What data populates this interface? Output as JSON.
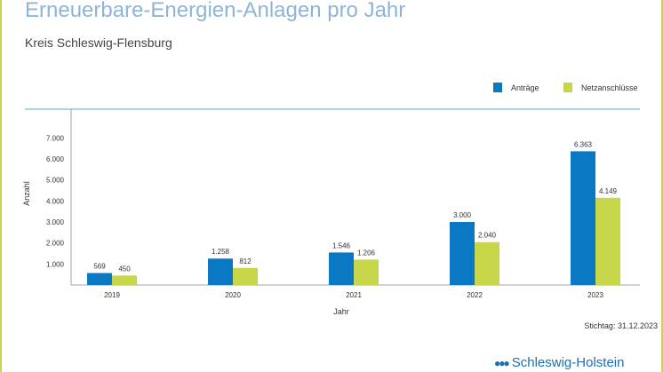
{
  "chart_data": {
    "type": "bar",
    "title": "Erneuerbare-Energien-Anlagen pro Jahr",
    "subtitle": "Kreis Schleswig-Flensburg",
    "xlabel": "Jahr",
    "ylabel": "Anzahl",
    "categories": [
      "2019",
      "2020",
      "2021",
      "2022",
      "2023"
    ],
    "series": [
      {
        "name": "Anträge",
        "color": "#0a78c2",
        "values": [
          569,
          1258,
          1546,
          3000,
          6363
        ],
        "labels": [
          "569",
          "1.258",
          "1.546",
          "3.000",
          "6.363"
        ]
      },
      {
        "name": "Netzanschlüsse",
        "color": "#c8d64a",
        "values": [
          450,
          812,
          1206,
          2040,
          4149
        ],
        "labels": [
          "450",
          "812",
          "1.206",
          "2.040",
          "4.149"
        ]
      }
    ],
    "yticks": [
      1000,
      2000,
      3000,
      4000,
      5000,
      6000,
      7000
    ],
    "ytick_labels": [
      "1.000",
      "2.000",
      "3.000",
      "4.000",
      "5.000",
      "6.000",
      "7.000"
    ],
    "ylim": [
      0,
      8400
    ],
    "grid": false,
    "legend": "top-right"
  },
  "footer": {
    "stichtag": "Stichtag: 31.12.2023",
    "logo_text": "Schleswig-Holstein"
  },
  "colors": {
    "frame": "#c8d64a",
    "title": "#8fb4d9",
    "rule": "#5aa8c8"
  }
}
